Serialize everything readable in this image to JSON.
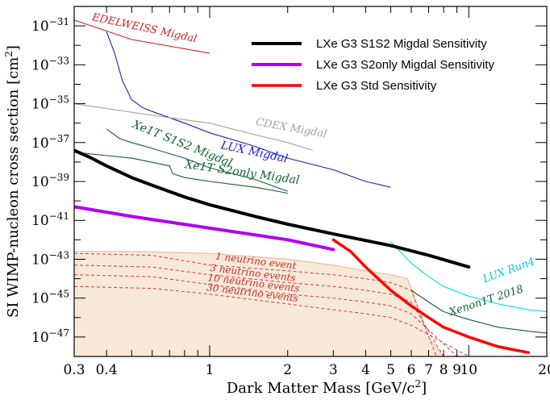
{
  "chart_data": {
    "type": "line",
    "xlabel_main": "Dark Matter Mass [GeV/c",
    "xlabel_sup": "2",
    "xlabel_end": "]",
    "ylabel_main": "SI WIMP-nucleon cross section [cm",
    "ylabel_sup": "2",
    "ylabel_end": "]",
    "xscale": "log",
    "yscale": "log",
    "xlim": [
      0.3,
      20
    ],
    "ylim": [
      1e-48,
      1e-30
    ],
    "legend_position": "top-right",
    "x_ticks": [
      {
        "value": 0.3,
        "label": "0.3"
      },
      {
        "value": 0.4,
        "label": "0.4"
      },
      {
        "value": 1,
        "label": "1"
      },
      {
        "value": 2,
        "label": "2"
      },
      {
        "value": 3,
        "label": "3"
      },
      {
        "value": 4,
        "label": "4"
      },
      {
        "value": 5,
        "label": "5"
      },
      {
        "value": 6,
        "label": "6"
      },
      {
        "value": 7,
        "label": "7"
      },
      {
        "value": 8,
        "label": "8"
      },
      {
        "value": 9,
        "label": "9"
      },
      {
        "value": 10,
        "label": "10"
      },
      {
        "value": 20,
        "label": "20"
      }
    ],
    "y_ticks": [
      {
        "exp": -31,
        "base": "10",
        "sup": "−31"
      },
      {
        "exp": -33,
        "base": "10",
        "sup": "−33"
      },
      {
        "exp": -35,
        "base": "10",
        "sup": "−35"
      },
      {
        "exp": -37,
        "base": "10",
        "sup": "−37"
      },
      {
        "exp": -39,
        "base": "10",
        "sup": "−39"
      },
      {
        "exp": -41,
        "base": "10",
        "sup": "−41"
      },
      {
        "exp": -43,
        "base": "10",
        "sup": "−43"
      },
      {
        "exp": -45,
        "base": "10",
        "sup": "−45"
      },
      {
        "exp": -47,
        "base": "10",
        "sup": "−47"
      }
    ],
    "neutrino_floor": {
      "x": [
        0.3,
        0.5,
        1,
        2,
        3,
        4,
        5,
        5.8,
        6,
        7,
        8,
        9,
        10,
        20
      ],
      "y_exp": [
        -42.6,
        -42.6,
        -42.7,
        -43.0,
        -43.3,
        -43.6,
        -43.8,
        -44.0,
        -44.5,
        -47.0,
        -48,
        -48,
        -48,
        -48
      ],
      "color": "#f8e8d8",
      "edge": "#e8b090"
    },
    "neutrino_contours": [
      {
        "label": "1 neutrino event",
        "x": [
          0.3,
          0.6,
          1,
          2,
          3,
          4,
          5,
          6,
          7.5
        ],
        "y_exp": [
          -42.7,
          -42.8,
          -43.3,
          -43.6,
          -43.8,
          -44.0,
          -44.2,
          -44.6,
          -48
        ]
      },
      {
        "label": "3 neutrino events",
        "x": [
          0.3,
          0.6,
          1,
          2,
          3,
          4,
          5,
          6,
          8
        ],
        "y_exp": [
          -43.3,
          -43.4,
          -43.8,
          -44.2,
          -44.4,
          -44.6,
          -44.8,
          -45.2,
          -48
        ]
      },
      {
        "label": "10 neutrino events",
        "x": [
          0.3,
          0.6,
          1,
          2,
          3,
          4,
          5,
          6,
          9
        ],
        "y_exp": [
          -43.8,
          -43.9,
          -44.3,
          -44.8,
          -45.0,
          -45.2,
          -45.4,
          -45.8,
          -48
        ]
      },
      {
        "label": "30 neutrino events",
        "x": [
          0.3,
          0.6,
          1,
          2,
          3,
          4,
          5,
          6,
          10
        ],
        "y_exp": [
          -44.4,
          -44.5,
          -44.8,
          -45.3,
          -45.6,
          -45.8,
          -46.0,
          -46.4,
          -48
        ]
      }
    ],
    "series": [
      {
        "name": "LXe G3 S1S2 Migdal Sensitivity",
        "color": "#000000",
        "width": 4,
        "x": [
          0.3,
          0.35,
          0.4,
          0.5,
          0.6,
          0.8,
          1,
          1.5,
          2,
          3,
          5,
          7,
          10
        ],
        "y_exp": [
          -37.4,
          -37.8,
          -38.2,
          -38.8,
          -39.2,
          -39.8,
          -40.2,
          -40.8,
          -41.2,
          -41.7,
          -42.3,
          -42.8,
          -43.4
        ]
      },
      {
        "name": "LXe G3 S2only Migdal Sensitivity",
        "color": "#b000f0",
        "width": 4,
        "x": [
          0.3,
          0.5,
          1,
          2,
          3
        ],
        "y_exp": [
          -40.3,
          -40.8,
          -41.4,
          -42.0,
          -42.5
        ]
      },
      {
        "name": "LXe G3 Std Sensitivity",
        "color": "#ff0000",
        "width": 3.5,
        "x": [
          3,
          3.5,
          4,
          5,
          6,
          7,
          8,
          10,
          13,
          17
        ],
        "y_exp": [
          -42.0,
          -42.6,
          -43.4,
          -44.6,
          -45.4,
          -46.0,
          -46.5,
          -47.0,
          -47.5,
          -47.8
        ]
      }
    ],
    "others": [
      {
        "name": "EDELWEISS Migdal",
        "color": "#d02020",
        "x": [
          0.3,
          0.5,
          1
        ],
        "y_exp": [
          -30.7,
          -31.7,
          -32.4
        ]
      },
      {
        "name": "LUX Migdal",
        "color": "#2020c0",
        "x": [
          0.4,
          0.43,
          0.46,
          0.5,
          0.55,
          0.6,
          0.8,
          1,
          1.5,
          2,
          3,
          4,
          5
        ],
        "y_exp": [
          -31.3,
          -32.4,
          -33.8,
          -34.8,
          -35.2,
          -35.4,
          -36.0,
          -36.5,
          -37.2,
          -37.8,
          -38.4,
          -39.0,
          -39.3
        ]
      },
      {
        "name": "CDEX Migdal",
        "color": "#a0a0a0",
        "x": [
          0.3,
          0.6,
          1,
          1.5,
          2,
          2.5
        ],
        "y_exp": [
          -35.0,
          -35.6,
          -36.0,
          -36.6,
          -37.0,
          -37.4
        ]
      },
      {
        "name": "Xe1T S1S2 Migdal",
        "color": "#106030",
        "x": [
          0.4,
          0.45,
          0.5,
          0.6,
          0.8,
          1,
          1.5,
          2
        ],
        "y_exp": [
          -36.3,
          -36.8,
          -37.0,
          -37.3,
          -37.8,
          -38.3,
          -38.9,
          -39.5
        ]
      },
      {
        "name": "Xe1T S2only Migdal",
        "color": "#106030",
        "x": [
          0.3,
          0.5,
          0.7,
          0.72,
          0.8,
          1,
          1.5,
          2
        ],
        "y_exp": [
          -37.5,
          -37.8,
          -38.2,
          -38.6,
          -38.8,
          -39.0,
          -39.3,
          -39.6
        ]
      },
      {
        "name": "LUX Run4",
        "color": "#00e0e0",
        "x": [
          5,
          6,
          7,
          8,
          10,
          13,
          17,
          20
        ],
        "y_exp": [
          -42.1,
          -43.2,
          -43.9,
          -44.4,
          -44.9,
          -45.3,
          -45.6,
          -45.7
        ]
      },
      {
        "name": "Xenon1T 2018",
        "color": "#106030",
        "x": [
          6,
          7,
          8,
          10,
          13,
          17,
          20
        ],
        "y_exp": [
          -44.6,
          -45.2,
          -45.7,
          -46.1,
          -46.5,
          -46.7,
          -46.8
        ]
      }
    ],
    "annotations": [
      {
        "text": "EDELWEISS Migdal",
        "color": "#d02020",
        "x": 0.35,
        "y_exp": -30.7,
        "angle": 12,
        "size": 13
      },
      {
        "text": "CDEX Migdal",
        "color": "#a0a0a0",
        "x": 1.5,
        "y_exp": -36.1,
        "angle": 10,
        "size": 13
      },
      {
        "text": "Xe1T S1S2 Migdal",
        "color": "#106030",
        "x": 0.5,
        "y_exp": -36.2,
        "angle": 22,
        "size": 14
      },
      {
        "text": "LUX Migdal",
        "color": "#2020c0",
        "x": 1.1,
        "y_exp": -37.3,
        "angle": 12,
        "size": 14
      },
      {
        "text": "Xe1T S2only Migdal",
        "color": "#106030",
        "x": 0.8,
        "y_exp": -38.3,
        "angle": 8,
        "size": 14
      },
      {
        "text": "1 neutrino event",
        "color": "#c03030",
        "x": 1.05,
        "y_exp": -43.0,
        "angle": 7,
        "size": 12
      },
      {
        "text": "3 neutrino events",
        "color": "#c03030",
        "x": 1.0,
        "y_exp": -43.6,
        "angle": 7,
        "size": 12
      },
      {
        "text": "10 neutrino events",
        "color": "#c03030",
        "x": 0.98,
        "y_exp": -44.1,
        "angle": 7,
        "size": 12
      },
      {
        "text": "30 neutrino events",
        "color": "#c03030",
        "x": 0.97,
        "y_exp": -44.6,
        "angle": 7,
        "size": 12
      },
      {
        "text": "LUX Run4",
        "color": "#00c8d8",
        "x": 11.5,
        "y_exp": -44.2,
        "angle": -20,
        "size": 13
      },
      {
        "text": "Xenon1T 2018",
        "color": "#106030",
        "x": 8.5,
        "y_exp": -45.9,
        "angle": -18,
        "size": 13
      }
    ]
  }
}
